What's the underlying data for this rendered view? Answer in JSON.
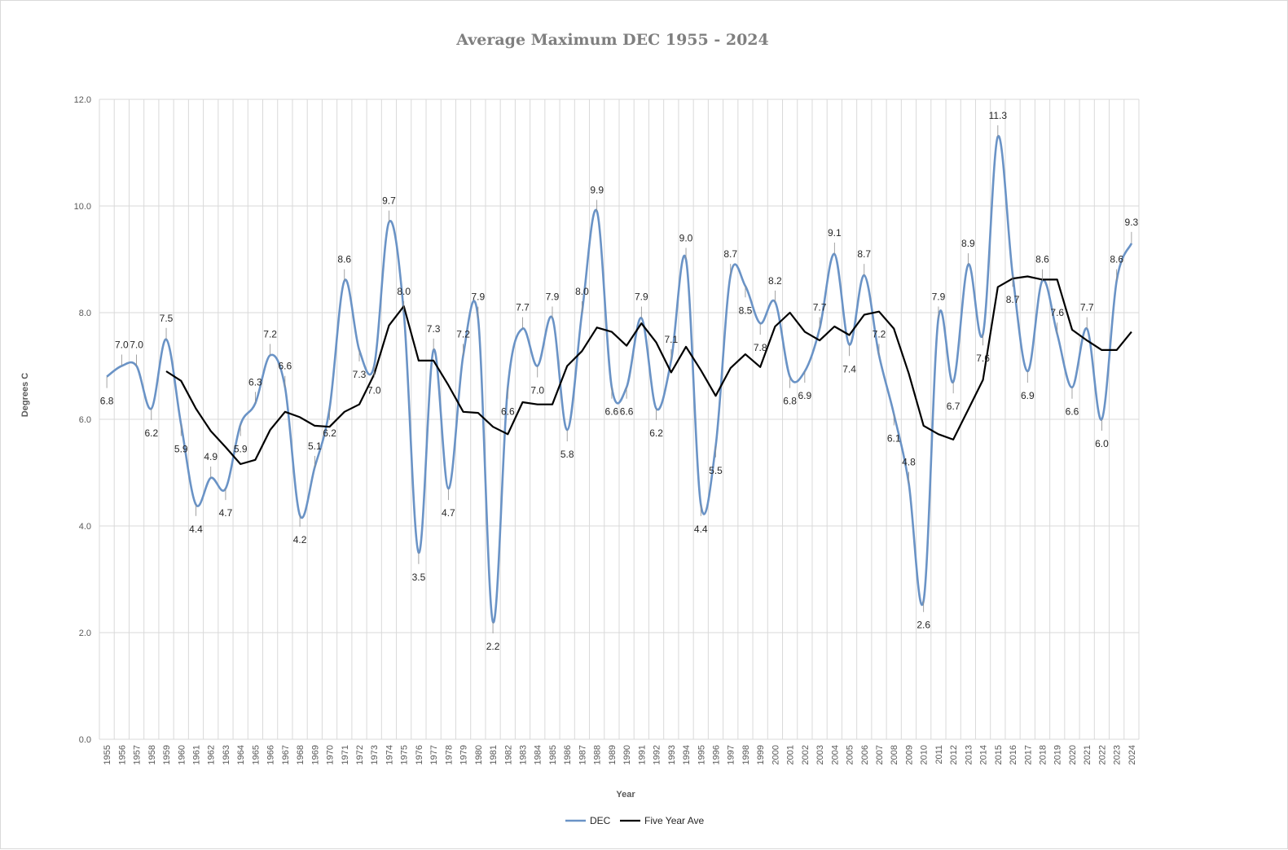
{
  "chart_data": {
    "type": "line",
    "title": "Average Maximum DEC 1955 - 2024",
    "xlabel": "Year",
    "ylabel": "Degrees C",
    "ylim": [
      0,
      12
    ],
    "y_ticks": [
      "0.0",
      "2.0",
      "4.0",
      "6.0",
      "8.0",
      "10.0",
      "12.0"
    ],
    "grid": "vertical and horizontal",
    "legend_position": "bottom",
    "categories": [
      "1955",
      "1956",
      "1957",
      "1958",
      "1959",
      "1960",
      "1961",
      "1962",
      "1963",
      "1964",
      "1965",
      "1966",
      "1967",
      "1968",
      "1969",
      "1970",
      "1971",
      "1972",
      "1973",
      "1974",
      "1975",
      "1976",
      "1977",
      "1978",
      "1979",
      "1980",
      "1981",
      "1982",
      "1983",
      "1984",
      "1985",
      "1986",
      "1987",
      "1988",
      "1989",
      "1990",
      "1991",
      "1992",
      "1993",
      "1994",
      "1995",
      "1996",
      "1997",
      "1998",
      "1999",
      "2000",
      "2001",
      "2002",
      "2003",
      "2004",
      "2005",
      "2006",
      "2007",
      "2008",
      "2009",
      "2010",
      "2011",
      "2012",
      "2013",
      "2014",
      "2015",
      "2016",
      "2017",
      "2018",
      "2019",
      "2020",
      "2021",
      "2022",
      "2023",
      "2024"
    ],
    "series": [
      {
        "name": "DEC",
        "color": "#6a93c6",
        "style": "smoothed",
        "values": [
          6.8,
          7.0,
          7.0,
          6.2,
          7.5,
          5.9,
          4.4,
          4.9,
          4.7,
          5.9,
          6.3,
          7.2,
          6.6,
          4.2,
          5.1,
          6.2,
          8.6,
          7.3,
          7.0,
          9.7,
          8.0,
          3.5,
          7.3,
          4.7,
          7.2,
          7.9,
          2.2,
          6.6,
          7.7,
          7.0,
          7.9,
          5.8,
          8.0,
          9.9,
          6.6,
          6.6,
          7.9,
          6.2,
          7.1,
          9.0,
          4.4,
          5.5,
          8.7,
          8.5,
          7.8,
          8.2,
          6.8,
          6.9,
          7.7,
          9.1,
          7.4,
          8.7,
          7.2,
          6.1,
          4.8,
          2.6,
          7.9,
          6.7,
          8.9,
          7.6,
          11.3,
          8.7,
          6.9,
          8.6,
          7.6,
          6.6,
          7.7,
          6.0,
          8.6,
          9.3
        ],
        "data_labels": [
          "6.8",
          "7.0",
          "7.0",
          "6.2",
          "7.5",
          "5.9",
          "4.4",
          "4.9",
          "4.7",
          "5.9",
          "6.3",
          "7.2",
          "6.6",
          "4.2",
          "5.1",
          "6.2",
          "8.6",
          "7.3",
          "7.0",
          "9.7",
          "8.0",
          "3.5",
          "7.3",
          "4.7",
          "7.2",
          "7.9",
          "2.2",
          "6.6",
          "7.7",
          "7.0",
          "7.9",
          "5.8",
          "8.0",
          "9.9",
          "6.6",
          "6.6",
          "7.9",
          "6.2",
          "7.1",
          "9.0",
          "4.4",
          "5.5",
          "8.7",
          "8.5",
          "7.8",
          "8.2",
          "6.8",
          "6.9",
          "7.7",
          "9.1",
          "7.4",
          "8.7",
          "7.2",
          "6.1",
          "4.8",
          "2.6",
          "7.9",
          "6.7",
          "8.9",
          "7.6",
          "11.3",
          "8.7",
          "6.9",
          "8.6",
          "7.6",
          "6.6",
          "7.7",
          "6.0",
          "8.6",
          "9.3"
        ]
      },
      {
        "name": "Five Year Ave",
        "color": "#000000",
        "style": "straight",
        "values": [
          null,
          null,
          null,
          null,
          6.9,
          6.72,
          6.2,
          5.78,
          5.48,
          5.16,
          5.24,
          5.8,
          6.14,
          6.04,
          5.88,
          5.86,
          6.14,
          6.28,
          6.84,
          7.76,
          8.12,
          7.1,
          7.1,
          6.64,
          6.14,
          6.12,
          5.86,
          5.72,
          6.32,
          6.28,
          6.28,
          7.0,
          7.28,
          7.72,
          7.64,
          7.38,
          7.8,
          7.44,
          6.88,
          7.36,
          6.92,
          6.44,
          6.96,
          7.22,
          6.98,
          7.74,
          8.0,
          7.64,
          7.48,
          7.74,
          7.58,
          7.96,
          8.02,
          7.7,
          6.86,
          5.88,
          5.72,
          5.62,
          6.18,
          6.74,
          8.48,
          8.64,
          8.68,
          8.62,
          8.62,
          7.68,
          7.48,
          7.3,
          7.3,
          7.64
        ]
      }
    ]
  }
}
